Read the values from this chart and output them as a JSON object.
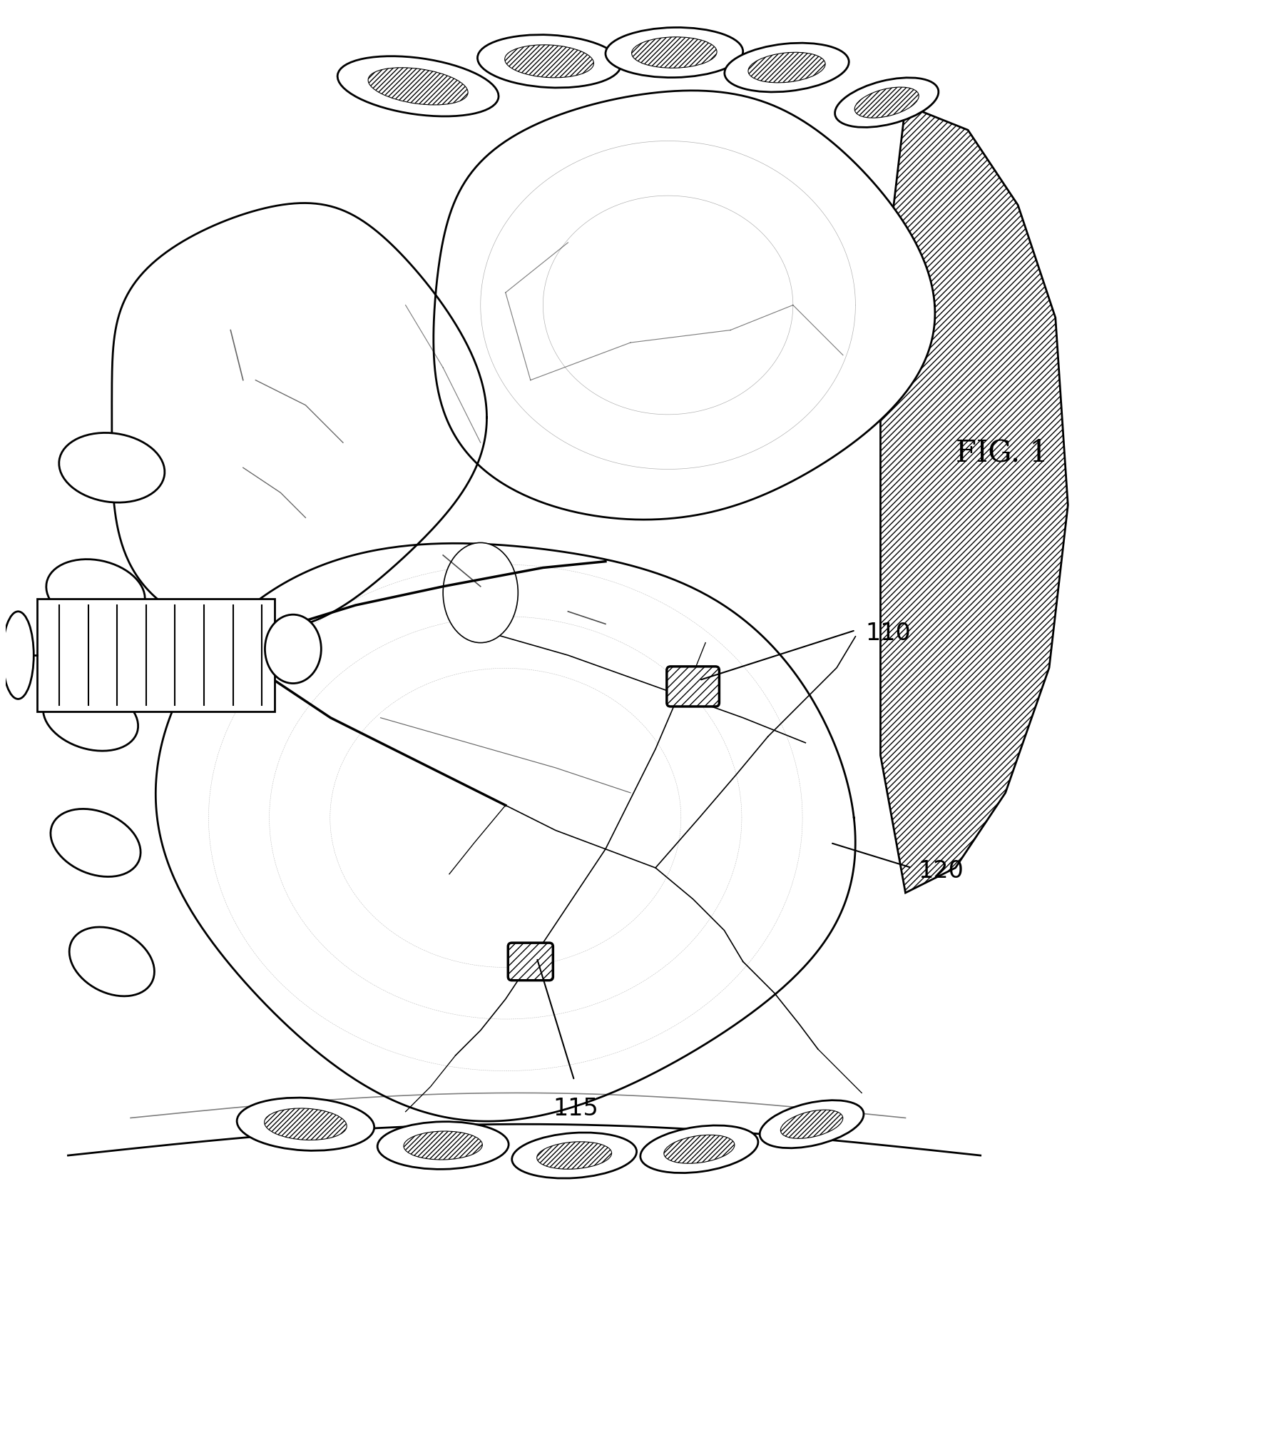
{
  "figure_label": "FIG. 1",
  "label_110": "110",
  "label_115": "115",
  "label_120": "120",
  "bg_color": "#ffffff",
  "line_color": "#000000",
  "fig_width": 17.68,
  "fig_height": 20.29,
  "dpi": 100
}
